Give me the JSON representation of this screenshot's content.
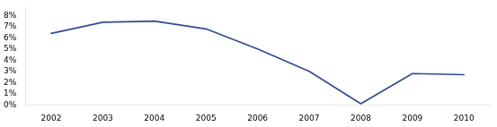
{
  "chart_data": {
    "type": "line",
    "x": [
      2002,
      2003,
      2004,
      2005,
      2006,
      2007,
      2008,
      2009,
      2010
    ],
    "values": [
      0.064,
      0.074,
      0.075,
      0.068,
      0.05,
      0.03,
      0.001,
      0.028,
      0.027
    ],
    "color": "#2E4B8F",
    "xlim": [
      2001.5,
      2010.5
    ],
    "ylim": [
      0.0,
      0.088
    ],
    "xticks": [
      2002,
      2003,
      2004,
      2005,
      2006,
      2007,
      2008,
      2009,
      2010
    ],
    "yticks": [
      {
        "value": 0.0,
        "label": "0%"
      },
      {
        "value": 0.01,
        "label": "1%"
      },
      {
        "value": 0.02,
        "label": "2%"
      },
      {
        "value": 0.03,
        "label": "3%"
      },
      {
        "value": 0.04,
        "label": "4%"
      },
      {
        "value": 0.05,
        "label": "5%"
      },
      {
        "value": 0.06,
        "label": "6%"
      },
      {
        "value": 0.07,
        "label": "7%"
      },
      {
        "value": 0.08,
        "label": "8%"
      }
    ],
    "grid": false
  }
}
